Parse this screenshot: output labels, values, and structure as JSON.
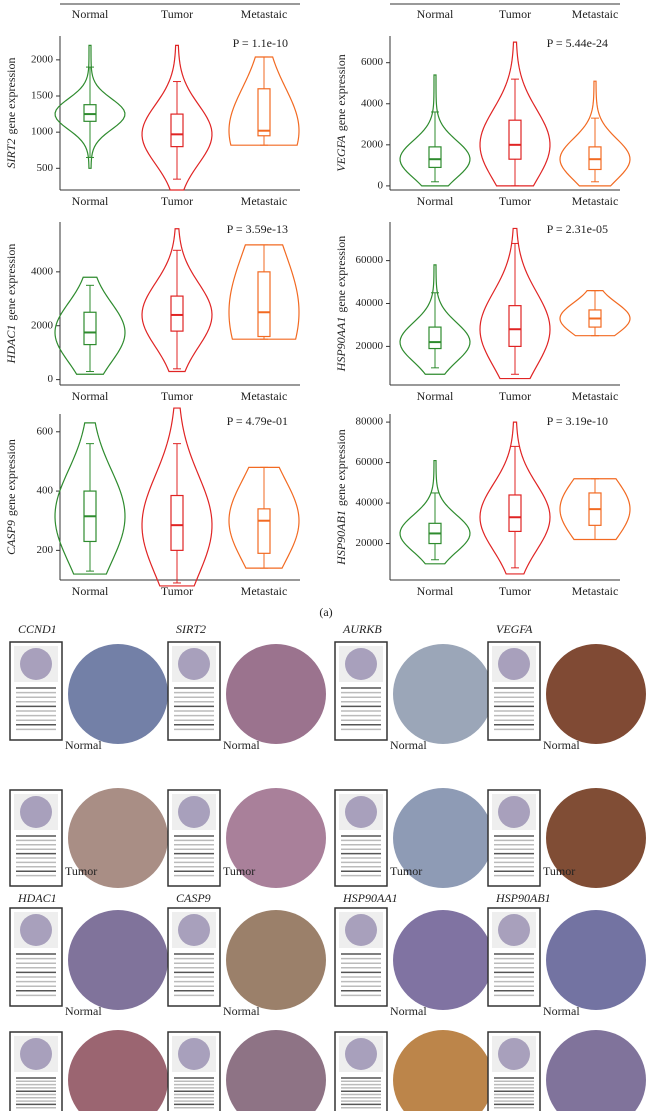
{
  "cropped_axes": [
    {
      "categories": [
        "Normal",
        "Tumor",
        "Metastaic"
      ]
    },
    {
      "categories": [
        "Normal",
        "Tumor",
        "Metastaic"
      ]
    }
  ],
  "chart_data": [
    {
      "type": "violin",
      "gene": "SIRT2",
      "ylabel": "gene expression",
      "annotation": "P = 1.1e-10",
      "categories": [
        "Normal",
        "Tumor",
        "Metastaic"
      ],
      "colors": [
        "#2e8b2e",
        "#e02424",
        "#f26a22"
      ],
      "ylim": [
        200,
        2330
      ],
      "yticks": [
        500,
        1000,
        1500,
        2000
      ],
      "violins": [
        [
          500,
          2200
        ],
        [
          200,
          2200
        ],
        [
          820,
          2040
        ]
      ],
      "boxes": [
        [
          650,
          1150,
          1250,
          1380,
          1900
        ],
        [
          350,
          800,
          970,
          1250,
          1700
        ],
        [
          820,
          950,
          1020,
          1600,
          2040
        ]
      ]
    },
    {
      "type": "violin",
      "gene": "VEGFA",
      "ylabel": "gene expression",
      "annotation": "P = 5.44e-24",
      "categories": [
        "Normal",
        "Tumor",
        "Metastaic"
      ],
      "colors": [
        "#2e8b2e",
        "#e02424",
        "#f26a22"
      ],
      "ylim": [
        -200,
        7300
      ],
      "yticks": [
        0,
        2000,
        4000,
        6000
      ],
      "violins": [
        [
          0,
          5400
        ],
        [
          0,
          7000
        ],
        [
          0,
          5100
        ]
      ],
      "boxes": [
        [
          200,
          900,
          1300,
          1900,
          3600
        ],
        [
          0,
          1300,
          2000,
          3200,
          5200
        ],
        [
          200,
          800,
          1300,
          1900,
          3300
        ]
      ]
    },
    {
      "type": "violin",
      "gene": "HDAC1",
      "ylabel": "gene expression",
      "annotation": "P = 3.59e-13",
      "categories": [
        "Normal",
        "Tumor",
        "Metastaic"
      ],
      "colors": [
        "#2e8b2e",
        "#e02424",
        "#f26a22"
      ],
      "ylim": [
        -200,
        5850
      ],
      "yticks": [
        0,
        2000,
        4000
      ],
      "violins": [
        [
          200,
          3800
        ],
        [
          300,
          5600
        ],
        [
          1500,
          5000
        ]
      ],
      "boxes": [
        [
          300,
          1300,
          1750,
          2500,
          3500
        ],
        [
          400,
          1800,
          2400,
          3100,
          4800
        ],
        [
          1500,
          1600,
          2500,
          4000,
          5000
        ]
      ]
    },
    {
      "type": "violin",
      "gene": "HSP90AA1",
      "ylabel": "gene expression",
      "annotation": "P = 2.31e-05",
      "categories": [
        "Normal",
        "Tumor",
        "Metastaic"
      ],
      "colors": [
        "#2e8b2e",
        "#e02424",
        "#f26a22"
      ],
      "ylim": [
        2000,
        78000
      ],
      "yticks": [
        20000,
        40000,
        60000
      ],
      "violins": [
        [
          7000,
          58000
        ],
        [
          5000,
          75000
        ],
        [
          25000,
          46000
        ]
      ],
      "boxes": [
        [
          10000,
          19000,
          22000,
          29000,
          45000
        ],
        [
          7000,
          20000,
          28000,
          39000,
          68000
        ],
        [
          25000,
          29000,
          33000,
          37000,
          46000
        ]
      ]
    },
    {
      "type": "violin",
      "gene": "CASP9",
      "ylabel": "gene expression",
      "annotation": "P = 4.79e-01",
      "categories": [
        "Normal",
        "Tumor",
        "Metastaic"
      ],
      "colors": [
        "#2e8b2e",
        "#e02424",
        "#f26a22"
      ],
      "ylim": [
        100,
        660
      ],
      "yticks": [
        200,
        400,
        600
      ],
      "violins": [
        [
          120,
          630
        ],
        [
          80,
          680
        ],
        [
          140,
          480
        ]
      ],
      "boxes": [
        [
          130,
          230,
          315,
          400,
          560
        ],
        [
          90,
          200,
          285,
          385,
          560
        ],
        [
          140,
          190,
          300,
          340,
          480
        ]
      ]
    },
    {
      "type": "violin",
      "gene": "HSP90AB1",
      "ylabel": "gene expression",
      "annotation": "P = 3.19e-10",
      "categories": [
        "Normal",
        "Tumor",
        "Metastaic"
      ],
      "colors": [
        "#2e8b2e",
        "#e02424",
        "#f26a22"
      ],
      "ylim": [
        2000,
        84000
      ],
      "yticks": [
        20000,
        40000,
        60000,
        80000
      ],
      "violins": [
        [
          10000,
          61000
        ],
        [
          5000,
          80000
        ],
        [
          22000,
          52000
        ]
      ],
      "boxes": [
        [
          12000,
          20000,
          25000,
          30000,
          45000
        ],
        [
          8000,
          26000,
          33000,
          44000,
          68000
        ],
        [
          22000,
          29000,
          37000,
          45000,
          52000
        ]
      ]
    }
  ],
  "panel_label": "(a)",
  "ihc": [
    {
      "gene": "CCND1",
      "normal_label": "Normal",
      "tumor_label": "Tumor"
    },
    {
      "gene": "SIRT2",
      "normal_label": "Normal",
      "tumor_label": "Tumor"
    },
    {
      "gene": "AURKB",
      "normal_label": "Normal",
      "tumor_label": "Tumor"
    },
    {
      "gene": "VEGFA",
      "normal_label": "Normal",
      "tumor_label": "Tumor"
    },
    {
      "gene": "HDAC1",
      "normal_label": "Normal"
    },
    {
      "gene": "CASP9",
      "normal_label": "Normal"
    },
    {
      "gene": "HSP90AA1",
      "normal_label": "Normal"
    },
    {
      "gene": "HSP90AB1",
      "normal_label": "Normal"
    }
  ]
}
